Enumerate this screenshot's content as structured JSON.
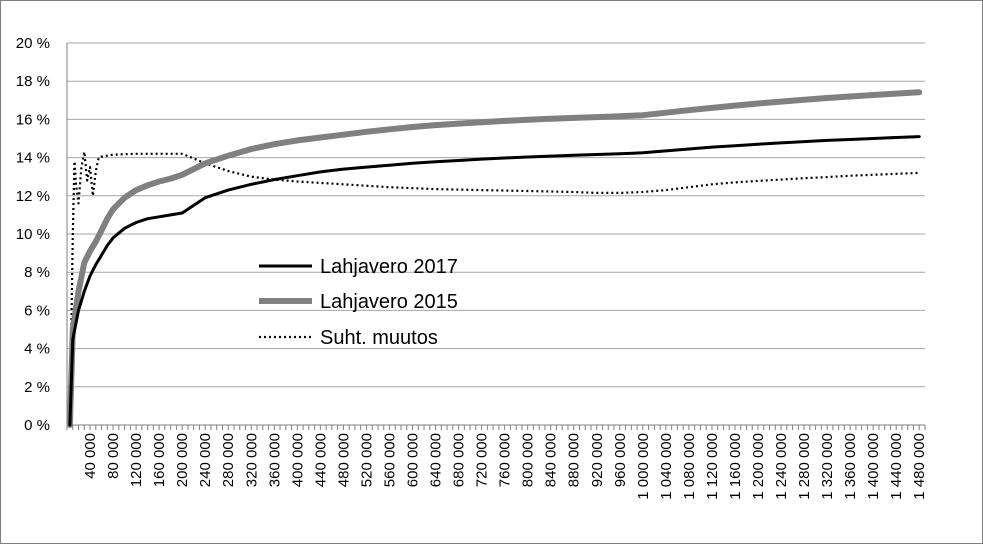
{
  "chart_data": {
    "type": "line",
    "title": "",
    "xlabel": "",
    "ylabel": "",
    "x_tick_labels": [
      "40 000",
      "80 000",
      "120 000",
      "160 000",
      "200 000",
      "240 000",
      "280 000",
      "320 000",
      "360 000",
      "400 000",
      "440 000",
      "480 000",
      "520 000",
      "560 000",
      "600 000",
      "640 000",
      "680 000",
      "720 000",
      "760 000",
      "800 000",
      "840 000",
      "880 000",
      "920 000",
      "960 000",
      "1 000 000",
      "1 040 000",
      "1 080 000",
      "1 120 000",
      "1 160 000",
      "1 200 000",
      "1 240 000",
      "1 280 000",
      "1 320 000",
      "1 360 000",
      "1 400 000",
      "1 440 000",
      "1 480 000"
    ],
    "y_tick_labels": [
      "0 %",
      "2 %",
      "4 %",
      "6 %",
      "8 %",
      "10 %",
      "12 %",
      "14 %",
      "16 %",
      "18 %",
      "20 %"
    ],
    "xlim": [
      0,
      1490000
    ],
    "ylim": [
      0,
      20
    ],
    "grid": "horizontal",
    "legend": "center-left",
    "series": [
      {
        "name": "Lahjavero 2017",
        "color": "#000000",
        "style": "solid",
        "x": [
          5000,
          10000,
          20000,
          30000,
          40000,
          50000,
          60000,
          70000,
          80000,
          100000,
          120000,
          140000,
          160000,
          180000,
          200000,
          220000,
          240000,
          280000,
          320000,
          360000,
          400000,
          440000,
          480000,
          520000,
          560000,
          600000,
          640000,
          680000,
          720000,
          760000,
          800000,
          840000,
          880000,
          920000,
          960000,
          1000000,
          1040000,
          1080000,
          1120000,
          1160000,
          1200000,
          1240000,
          1280000,
          1320000,
          1360000,
          1400000,
          1440000,
          1480000
        ],
        "y": [
          0,
          4.5,
          6,
          7,
          7.8,
          8.4,
          8.9,
          9.4,
          9.8,
          10.3,
          10.6,
          10.8,
          10.9,
          11,
          11.1,
          11.5,
          11.9,
          12.3,
          12.6,
          12.85,
          13.05,
          13.25,
          13.4,
          13.5,
          13.6,
          13.7,
          13.78,
          13.85,
          13.92,
          13.98,
          14.03,
          14.08,
          14.12,
          14.16,
          14.2,
          14.25,
          14.35,
          14.45,
          14.55,
          14.62,
          14.7,
          14.77,
          14.84,
          14.9,
          14.95,
          15,
          15.05,
          15.1
        ]
      },
      {
        "name": "Lahjavero 2015",
        "color": "#808080",
        "style": "solid",
        "x": [
          5000,
          10000,
          20000,
          30000,
          40000,
          50000,
          60000,
          70000,
          80000,
          100000,
          120000,
          140000,
          160000,
          180000,
          200000,
          220000,
          240000,
          280000,
          320000,
          360000,
          400000,
          440000,
          480000,
          520000,
          560000,
          600000,
          640000,
          680000,
          720000,
          760000,
          800000,
          840000,
          880000,
          920000,
          960000,
          1000000,
          1040000,
          1080000,
          1120000,
          1160000,
          1200000,
          1240000,
          1280000,
          1320000,
          1360000,
          1400000,
          1440000,
          1480000
        ],
        "y": [
          0,
          5,
          7,
          8.5,
          9.1,
          9.6,
          10.2,
          10.8,
          11.3,
          11.9,
          12.3,
          12.55,
          12.75,
          12.9,
          13.1,
          13.4,
          13.7,
          14.1,
          14.45,
          14.7,
          14.9,
          15.05,
          15.2,
          15.35,
          15.48,
          15.6,
          15.7,
          15.78,
          15.85,
          15.92,
          15.98,
          16.03,
          16.08,
          16.12,
          16.17,
          16.22,
          16.35,
          16.48,
          16.6,
          16.72,
          16.83,
          16.93,
          17.03,
          17.12,
          17.2,
          17.28,
          17.35,
          17.42
        ]
      },
      {
        "name": "Suht. muutos",
        "color": "#000000",
        "style": "dotted",
        "x": [
          5000,
          8000,
          10000,
          13000,
          16000,
          20000,
          25000,
          30000,
          35000,
          40000,
          45000,
          50000,
          55000,
          60000,
          80000,
          120000,
          160000,
          200000,
          240000,
          280000,
          320000,
          360000,
          400000,
          480000,
          560000,
          640000,
          720000,
          800000,
          880000,
          920000,
          960000,
          1000000,
          1040000,
          1080000,
          1120000,
          1160000,
          1200000,
          1240000,
          1280000,
          1320000,
          1360000,
          1400000,
          1440000,
          1480000
        ],
        "y": [
          0,
          6,
          10,
          13.8,
          12.5,
          11.6,
          13.5,
          14.3,
          12.8,
          13.5,
          12,
          13.3,
          14,
          14.05,
          14.15,
          14.2,
          14.2,
          14.2,
          13.7,
          13.3,
          13,
          12.85,
          12.75,
          12.6,
          12.45,
          12.35,
          12.3,
          12.25,
          12.2,
          12.15,
          12.15,
          12.2,
          12.3,
          12.45,
          12.6,
          12.7,
          12.78,
          12.85,
          12.92,
          12.98,
          13.05,
          13.1,
          13.15,
          13.2
        ]
      }
    ]
  }
}
